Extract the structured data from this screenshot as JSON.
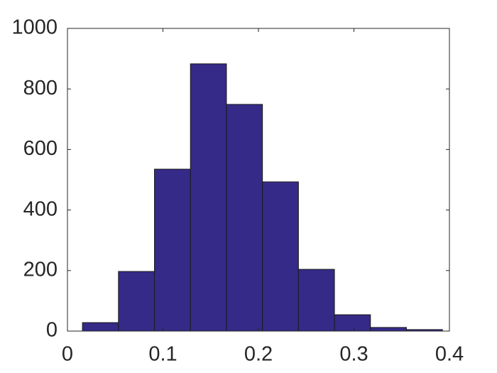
{
  "chart_data": {
    "type": "histogram",
    "bins": [
      0.0157,
      0.0534,
      0.0911,
      0.1288,
      0.1665,
      0.2042,
      0.2419,
      0.2796,
      0.3173,
      0.355,
      0.3927
    ],
    "values": [
      28,
      197,
      535,
      883,
      749,
      493,
      204,
      54,
      12,
      5
    ],
    "color": "#352a87",
    "xlim": [
      0,
      0.4
    ],
    "xticks": [
      0,
      0.1,
      0.2,
      0.3,
      0.4
    ],
    "ylim": [
      0,
      1000
    ],
    "yticks": [
      0,
      200,
      400,
      600,
      800,
      1000
    ],
    "grid": false
  }
}
